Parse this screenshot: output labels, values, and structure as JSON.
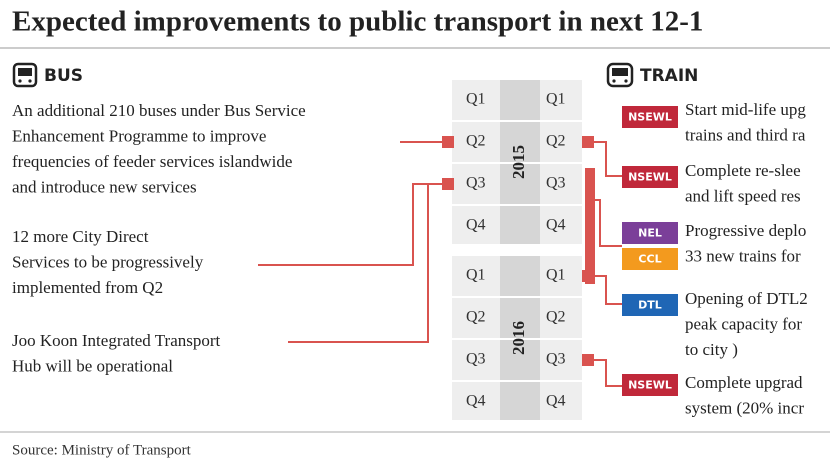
{
  "header": {
    "title": "Expected improvements to public transport in next 12-1"
  },
  "bus": {
    "heading": "BUS",
    "items": [
      {
        "lines": [
          "An additional 210 buses under Bus Service",
          "Enhancement Programme to improve",
          "frequencies of feeder services islandwide",
          "and introduce new services"
        ]
      },
      {
        "lines": [
          "12 more City Direct",
          "Services to be progressively",
          "implemented from Q2"
        ]
      },
      {
        "lines": [
          "Joo Koon Integrated Transport",
          "Hub will be operational"
        ]
      }
    ]
  },
  "timeline": {
    "years": [
      {
        "label": "2015",
        "quarters": [
          "Q1",
          "Q2",
          "Q3",
          "Q4"
        ]
      },
      {
        "label": "2016",
        "quarters": [
          "Q1",
          "Q2",
          "Q3",
          "Q4"
        ]
      }
    ]
  },
  "train": {
    "heading": "TRAIN",
    "items": [
      {
        "badges": [
          "NSEWL"
        ],
        "lines": [
          "Start mid-life upg",
          "trains and third ra"
        ]
      },
      {
        "badges": [
          "NSEWL"
        ],
        "lines": [
          "Complete re-slee",
          "and lift speed res"
        ]
      },
      {
        "badges": [
          "NEL",
          "CCL"
        ],
        "lines": [
          "Progressive deplo",
          "33 new trains for"
        ]
      },
      {
        "badges": [
          "DTL"
        ],
        "lines": [
          "Opening of DTL2",
          "peak capacity for",
          "to city )"
        ]
      },
      {
        "badges": [
          "NSEWL"
        ],
        "lines": [
          "Complete upgrad",
          "system (20% incr"
        ]
      }
    ]
  },
  "footer": {
    "source": "Source: Ministry of Transport"
  }
}
